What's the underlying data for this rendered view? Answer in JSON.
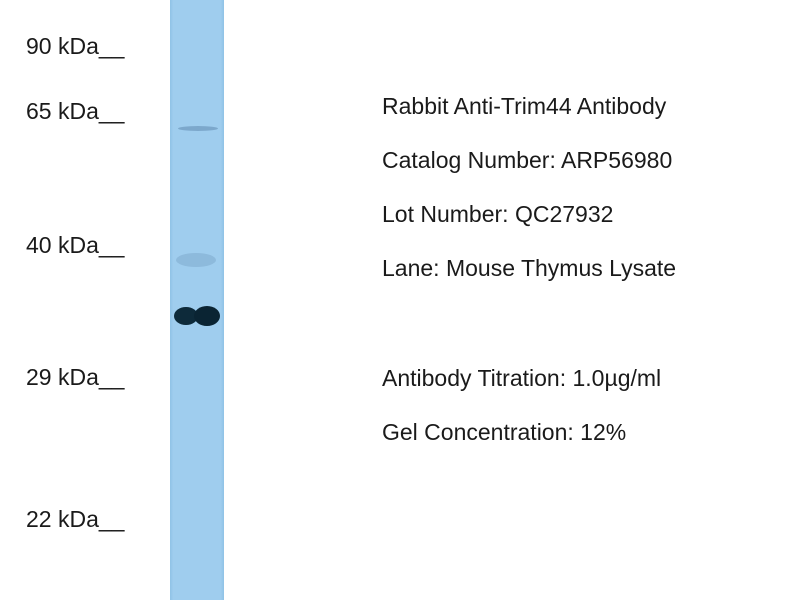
{
  "markers": [
    "90 kDa__",
    "65 kDa__",
    "40 kDa__",
    "29 kDa__",
    "22 kDa__"
  ],
  "info": {
    "antibody": "Rabbit Anti-Trim44 Antibody",
    "catalog": "Catalog Number: ARP56980",
    "lot": "Lot Number: QC27932",
    "lane": "Lane: Mouse Thymus Lysate",
    "titration": "Antibody Titration: 1.0µg/ml",
    "gel": "Gel Concentration: 12%"
  },
  "colors": {
    "lane": "#9fcdee",
    "band": "#0d2a3a"
  }
}
